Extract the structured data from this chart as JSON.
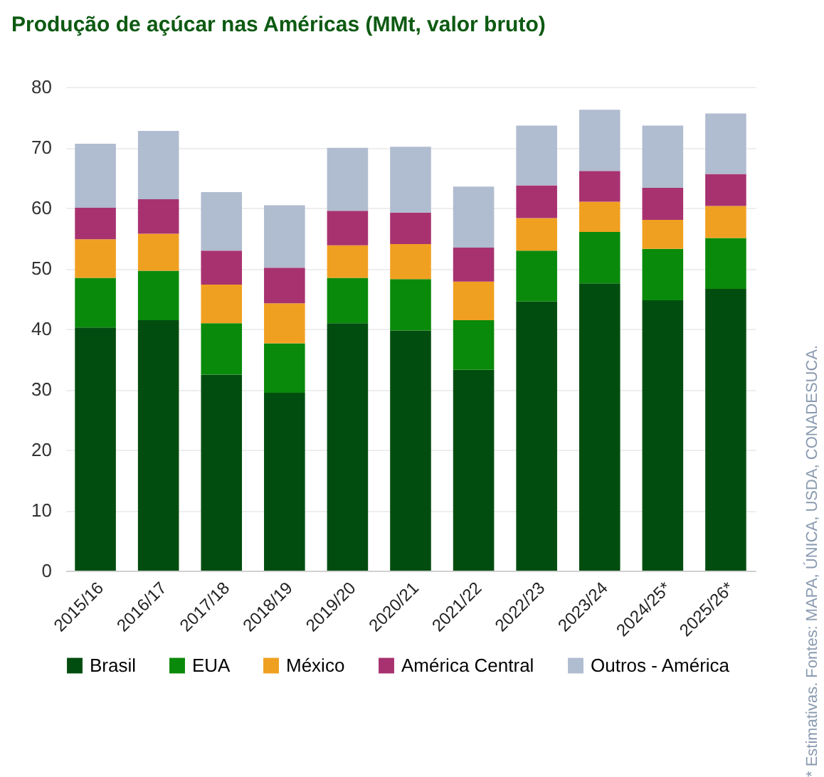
{
  "chart_data": {
    "type": "bar",
    "title": "Produção de açúcar nas Américas (MMt, valor bruto)",
    "categories": [
      "2015/16",
      "2016/17",
      "2017/18",
      "2018/19",
      "2019/20",
      "2020/21",
      "2021/22",
      "2022/23",
      "2023/24",
      "2024/25*",
      "2025/26*"
    ],
    "stacked": true,
    "series": [
      {
        "name": "Brasil",
        "color": "#004d0f",
        "values": [
          40.2,
          41.4,
          32.4,
          29.4,
          40.9,
          39.7,
          33.2,
          44.5,
          47.5,
          44.7,
          46.6
        ]
      },
      {
        "name": "EUA",
        "color": "#0a8a0a",
        "values": [
          8.2,
          8.2,
          8.5,
          8.2,
          7.5,
          8.5,
          8.2,
          8.4,
          8.5,
          8.5,
          8.4
        ]
      },
      {
        "name": "México",
        "color": "#f0a020",
        "values": [
          6.4,
          6.1,
          6.4,
          6.6,
          5.4,
          5.8,
          6.4,
          5.4,
          5.0,
          4.8,
          5.3
        ]
      },
      {
        "name": "América Central",
        "color": "#a83270",
        "values": [
          5.2,
          5.7,
          5.6,
          5.9,
          5.7,
          5.2,
          5.6,
          5.4,
          5.1,
          5.3,
          5.3
        ]
      },
      {
        "name": "Outros - América",
        "color": "#b0bccf",
        "values": [
          10.6,
          11.3,
          9.7,
          10.3,
          10.4,
          10.9,
          10.1,
          9.9,
          10.1,
          10.3,
          10.0
        ]
      }
    ],
    "ylim": [
      0,
      80
    ],
    "yticks": [
      0,
      10,
      20,
      30,
      40,
      50,
      60,
      70,
      80
    ],
    "grid": "y",
    "legend": "bottom",
    "annotations": [
      "* Estimativas. Fontes: MAPA, ÚNICA, USDA, CONADESUCA."
    ]
  }
}
